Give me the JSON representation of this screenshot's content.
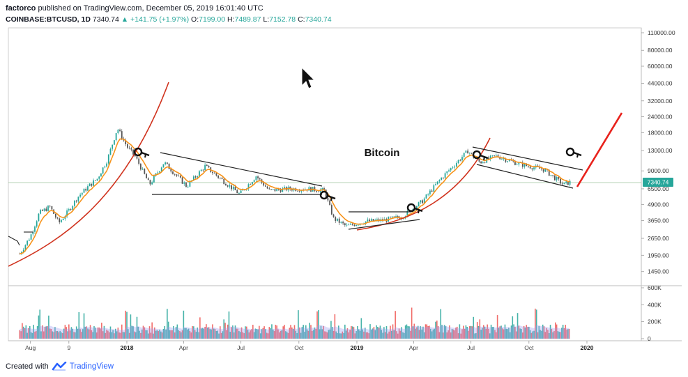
{
  "header": {
    "author": "factorco",
    "published_text": "published on TradingView.com, December 05, 2019 16:01:40 UTC",
    "symbol": "COINBASE:BTCUSD, 1D",
    "last": "7340.74",
    "change": "▲ +141.75 (+1.97%)",
    "o_label": "O:",
    "o_val": "7199.00",
    "h_label": "H:",
    "h_val": "7489.87",
    "l_label": "L:",
    "l_val": "7152.78",
    "c_label": "C:",
    "c_val": "7340.74"
  },
  "footer": {
    "created_with": "Created with",
    "brand": "TradingView"
  },
  "colors": {
    "candle_up": "#26a69a",
    "candle_down": "#555555",
    "ema_orange": "#f7931a",
    "parabola": "#d0321d",
    "target_line": "#e8221c",
    "channel": "#222222",
    "vol_red": "#ef5350",
    "vol_green": "#26a69a",
    "vol_avg": "#9e9cf0"
  },
  "chart_data": {
    "type": "line",
    "title": "",
    "annotation_text": "Bitcoin",
    "xlabel": "",
    "ylabel": "",
    "y_scale": "log",
    "x_ticks": [
      "Aug",
      "9",
      "2018",
      "Apr",
      "Jul",
      "Oct",
      "2019",
      "Apr",
      "Jul",
      "Oct",
      "2020"
    ],
    "x_ticks_bold": [
      "2018",
      "2019",
      "2020"
    ],
    "y_ticks": [
      "110000.00",
      "80000.00",
      "60000.00",
      "44000.00",
      "32000.00",
      "24000.00",
      "18000.00",
      "13000.00",
      "9000.00",
      "6500.00",
      "4900.00",
      "3650.00",
      "2650.00",
      "1950.00",
      "1450.00"
    ],
    "last_price_label": "7340.74",
    "volume_ticks": [
      "600K",
      "400K",
      "200K",
      "0"
    ],
    "series": [
      {
        "name": "BTCUSD",
        "x": [
          "2017-07-15",
          "2017-08-01",
          "2017-08-15",
          "2017-09-01",
          "2017-09-15",
          "2017-10-01",
          "2017-10-15",
          "2017-11-01",
          "2017-11-15",
          "2017-12-01",
          "2017-12-17",
          "2018-01-01",
          "2018-01-15",
          "2018-02-06",
          "2018-03-01",
          "2018-04-06",
          "2018-05-05",
          "2018-06-29",
          "2018-07-25",
          "2018-08-15",
          "2018-09-15",
          "2018-10-15",
          "2018-11-10",
          "2018-11-25",
          "2018-12-15",
          "2019-01-15",
          "2019-02-15",
          "2019-03-15",
          "2019-04-15",
          "2019-05-15",
          "2019-06-26",
          "2019-07-15",
          "2019-08-10",
          "2019-09-15",
          "2019-10-25",
          "2019-11-25",
          "2019-12-05"
        ],
        "values": [
          2000,
          2750,
          4200,
          4700,
          3500,
          4400,
          5600,
          6800,
          7800,
          11000,
          19500,
          14000,
          11500,
          7000,
          10500,
          6800,
          9800,
          5900,
          8200,
          6300,
          6500,
          6500,
          6300,
          3800,
          3300,
          3600,
          3700,
          3950,
          5200,
          7900,
          12900,
          10500,
          11800,
          10200,
          9200,
          7000,
          7340.74
        ]
      }
    ],
    "annotations": [
      "parabolic-curve-2017",
      "descending-triangle-2018",
      "ascending-support-2019",
      "parabolic-curve-2019",
      "descending-channel-2019",
      "projected-breakout-line",
      "pattern-markers"
    ]
  }
}
